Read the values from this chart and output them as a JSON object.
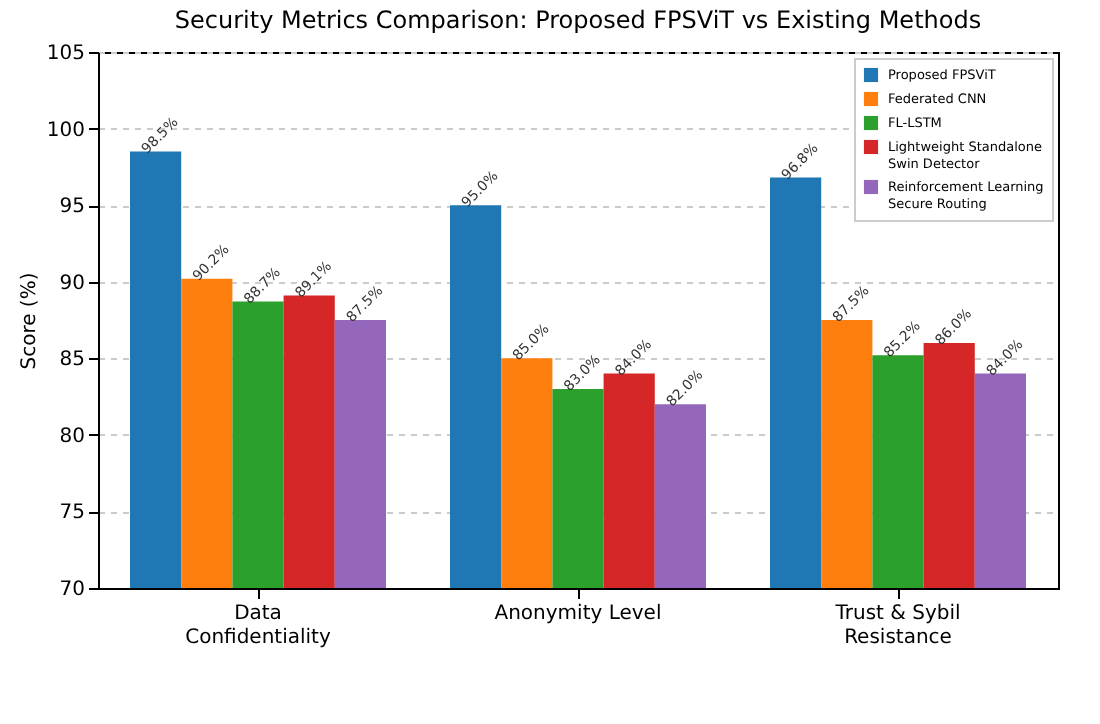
{
  "chart_data": {
    "type": "bar",
    "title": "Security Metrics Comparison: Proposed FPSViT vs Existing Methods",
    "ylabel": "Score (%)",
    "categories": [
      "Data Confidentiality",
      "Anonymity Level",
      "Trust & Sybil Resistance"
    ],
    "series": [
      {
        "name": "Proposed FPSViT",
        "color": "#1f77b4",
        "values": [
          98.5,
          95.0,
          96.8
        ],
        "value_labels": [
          "98.5%",
          "95.0%",
          "96.8%"
        ]
      },
      {
        "name": "Federated CNN",
        "color": "#ff7f0e",
        "values": [
          90.2,
          85.0,
          87.5
        ],
        "value_labels": [
          "90.2%",
          "85.0%",
          "87.5%"
        ]
      },
      {
        "name": "FL-LSTM",
        "color": "#2ca02c",
        "values": [
          88.7,
          83.0,
          85.2
        ],
        "value_labels": [
          "88.7%",
          "83.0%",
          "85.2%"
        ]
      },
      {
        "name": "Lightweight Standalone Swin Detector",
        "color": "#d62728",
        "values": [
          89.1,
          84.0,
          86.0
        ],
        "value_labels": [
          "89.1%",
          "84.0%",
          "86.0%"
        ]
      },
      {
        "name": "Reinforcement Learning Secure Routing",
        "color": "#9467bd",
        "values": [
          87.5,
          82.0,
          84.0
        ],
        "value_labels": [
          "87.5%",
          "82.0%",
          "84.0%"
        ]
      }
    ],
    "ylim": [
      70,
      105
    ],
    "yticks": [
      70,
      75,
      80,
      85,
      90,
      95,
      100,
      105
    ],
    "grid": "y",
    "legend": "top right"
  }
}
